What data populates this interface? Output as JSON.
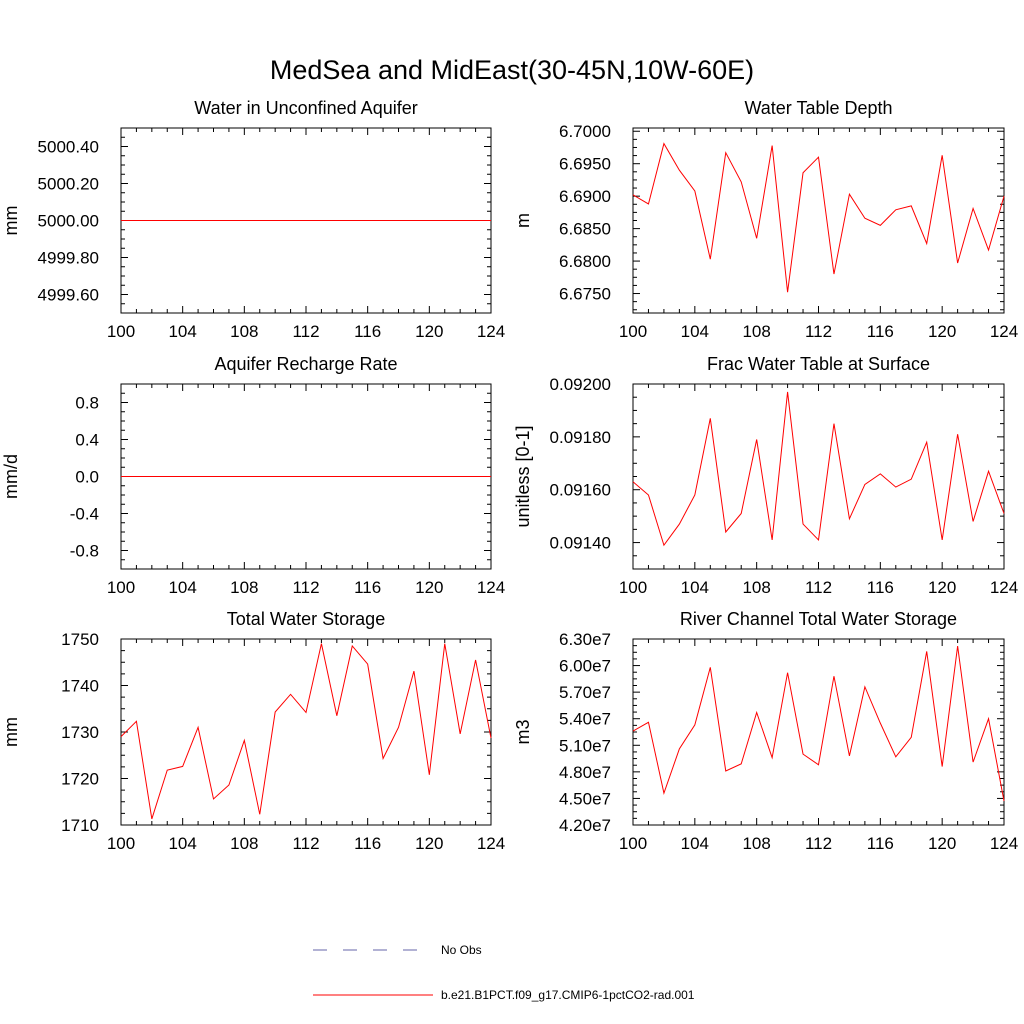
{
  "figure": {
    "title": "MedSea and MidEast(30-45N,10W-60E)"
  },
  "chart_data": [
    {
      "type": "line",
      "title": "Water in Unconfined Aquifer",
      "xlabel": "",
      "ylabel": "mm",
      "xlim": [
        100,
        124
      ],
      "ylim": [
        4999.5,
        5000.5
      ],
      "x_ticks": [
        100,
        104,
        108,
        112,
        116,
        120,
        124
      ],
      "y_ticks": [
        4999.6,
        4999.8,
        5000.0,
        5000.2,
        5000.4
      ],
      "y_tick_labels": [
        "4999.60",
        "4999.80",
        "5000.00",
        "5000.20",
        "5000.40"
      ],
      "series": [
        {
          "color": "#ff0000",
          "x": [
            100,
            101,
            102,
            103,
            104,
            105,
            106,
            107,
            108,
            109,
            110,
            111,
            112,
            113,
            114,
            115,
            116,
            117,
            118,
            119,
            120,
            121,
            122,
            123,
            124
          ],
          "y": [
            5000,
            5000,
            5000,
            5000,
            5000,
            5000,
            5000,
            5000,
            5000,
            5000,
            5000,
            5000,
            5000,
            5000,
            5000,
            5000,
            5000,
            5000,
            5000,
            5000,
            5000,
            5000,
            5000,
            5000,
            5000
          ]
        }
      ]
    },
    {
      "type": "line",
      "title": "Water Table Depth",
      "xlabel": "",
      "ylabel": "m",
      "xlim": [
        100,
        124
      ],
      "ylim": [
        6.672,
        6.7005
      ],
      "x_ticks": [
        100,
        104,
        108,
        112,
        116,
        120,
        124
      ],
      "y_ticks": [
        6.675,
        6.68,
        6.685,
        6.69,
        6.695,
        6.7
      ],
      "y_tick_labels": [
        "6.6750",
        "6.6800",
        "6.6850",
        "6.6900",
        "6.6950",
        "6.7000"
      ],
      "series": [
        {
          "color": "#ff0000",
          "x": [
            100,
            101,
            102,
            103,
            104,
            105,
            106,
            107,
            108,
            109,
            110,
            111,
            112,
            113,
            114,
            115,
            116,
            117,
            118,
            119,
            120,
            121,
            122,
            123,
            124
          ],
          "y": [
            6.6902,
            6.6888,
            6.6981,
            6.694,
            6.6908,
            6.6803,
            6.6967,
            6.6922,
            6.6835,
            6.6978,
            6.6752,
            6.6936,
            6.696,
            6.678,
            6.6903,
            6.6866,
            6.6855,
            6.6879,
            6.6885,
            6.6827,
            6.6963,
            6.6797,
            6.6881,
            6.6817,
            6.69
          ]
        }
      ]
    },
    {
      "type": "line",
      "title": "Aquifer Recharge Rate",
      "xlabel": "",
      "ylabel": "mm/d",
      "xlim": [
        100,
        124
      ],
      "ylim": [
        -1.0,
        1.0
      ],
      "x_ticks": [
        100,
        104,
        108,
        112,
        116,
        120,
        124
      ],
      "y_ticks": [
        -0.8,
        -0.4,
        0.0,
        0.4,
        0.8
      ],
      "y_tick_labels": [
        "-0.8",
        "-0.4",
        "0.0",
        "0.4",
        "0.8"
      ],
      "series": [
        {
          "color": "#ff0000",
          "x": [
            100,
            101,
            102,
            103,
            104,
            105,
            106,
            107,
            108,
            109,
            110,
            111,
            112,
            113,
            114,
            115,
            116,
            117,
            118,
            119,
            120,
            121,
            122,
            123,
            124
          ],
          "y": [
            0,
            0,
            0,
            0,
            0,
            0,
            0,
            0,
            0,
            0,
            0,
            0,
            0,
            0,
            0,
            0,
            0,
            0,
            0,
            0,
            0,
            0,
            0,
            0,
            0
          ]
        }
      ]
    },
    {
      "type": "line",
      "title": "Frac Water Table at Surface",
      "xlabel": "",
      "ylabel": "unitless [0-1]",
      "xlim": [
        100,
        124
      ],
      "ylim": [
        0.0913,
        0.092
      ],
      "x_ticks": [
        100,
        104,
        108,
        112,
        116,
        120,
        124
      ],
      "y_ticks": [
        0.0914,
        0.0916,
        0.0918,
        0.092
      ],
      "y_tick_labels": [
        "0.09140",
        "0.09160",
        "0.09180",
        "0.09200"
      ],
      "series": [
        {
          "color": "#ff0000",
          "x": [
            100,
            101,
            102,
            103,
            104,
            105,
            106,
            107,
            108,
            109,
            110,
            111,
            112,
            113,
            114,
            115,
            116,
            117,
            118,
            119,
            120,
            121,
            122,
            123,
            124
          ],
          "y": [
            0.09163,
            0.09158,
            0.09139,
            0.09147,
            0.09158,
            0.09187,
            0.09144,
            0.09151,
            0.09179,
            0.09141,
            0.09197,
            0.09147,
            0.09141,
            0.09185,
            0.09149,
            0.09162,
            0.09166,
            0.09161,
            0.09164,
            0.09178,
            0.09141,
            0.09181,
            0.09148,
            0.09167,
            0.09151
          ]
        }
      ]
    },
    {
      "type": "line",
      "title": "Total Water Storage",
      "xlabel": "",
      "ylabel": "mm",
      "xlim": [
        100,
        124
      ],
      "ylim": [
        1710,
        1750
      ],
      "x_ticks": [
        100,
        104,
        108,
        112,
        116,
        120,
        124
      ],
      "y_ticks": [
        1710,
        1720,
        1730,
        1740,
        1750
      ],
      "y_tick_labels": [
        "1710",
        "1720",
        "1730",
        "1740",
        "1750"
      ],
      "series": [
        {
          "color": "#ff0000",
          "x": [
            100,
            101,
            102,
            103,
            104,
            105,
            106,
            107,
            108,
            109,
            110,
            111,
            112,
            113,
            114,
            115,
            116,
            117,
            118,
            119,
            120,
            121,
            122,
            123,
            124
          ],
          "y": [
            1729.0,
            1732.3,
            1711.3,
            1721.8,
            1722.6,
            1731.0,
            1715.6,
            1718.6,
            1728.2,
            1712.3,
            1734.3,
            1738.1,
            1734.2,
            1749.0,
            1733.5,
            1748.5,
            1744.6,
            1724.3,
            1731.0,
            1743.1,
            1720.8,
            1749.0,
            1729.6,
            1745.5,
            1728.7
          ]
        }
      ]
    },
    {
      "type": "line",
      "title": "River Channel Total Water Storage",
      "xlabel": "",
      "ylabel": "m3",
      "xlim": [
        100,
        124
      ],
      "ylim": [
        42000000,
        63000000
      ],
      "x_ticks": [
        100,
        104,
        108,
        112,
        116,
        120,
        124
      ],
      "y_ticks": [
        42000000,
        45000000,
        48000000,
        51000000,
        54000000,
        57000000,
        60000000,
        63000000
      ],
      "y_tick_labels": [
        "4.20e7",
        "4.50e7",
        "4.80e7",
        "5.10e7",
        "5.40e7",
        "5.70e7",
        "6.00e7",
        "6.30e7"
      ],
      "series": [
        {
          "color": "#ff0000",
          "x": [
            100,
            101,
            102,
            103,
            104,
            105,
            106,
            107,
            108,
            109,
            110,
            111,
            112,
            113,
            114,
            115,
            116,
            117,
            118,
            119,
            120,
            121,
            122,
            123,
            124
          ],
          "y": [
            52600000,
            53600000,
            45600000,
            50600000,
            53300000,
            59800000,
            48100000,
            48900000,
            54700000,
            49600000,
            59200000,
            50000000,
            48800000,
            58800000,
            49800000,
            57600000,
            53500000,
            49700000,
            51900000,
            61600000,
            48600000,
            62200000,
            49100000,
            54000000,
            44700000
          ]
        }
      ]
    }
  ],
  "legend": {
    "items": [
      {
        "label": "No Obs",
        "color": "#6666aa",
        "style": "dashed"
      },
      {
        "label": "b.e21.B1PCT.f09_g17.CMIP6-1pctCO2-rad.001",
        "color": "#ff0000",
        "style": "solid"
      }
    ]
  }
}
